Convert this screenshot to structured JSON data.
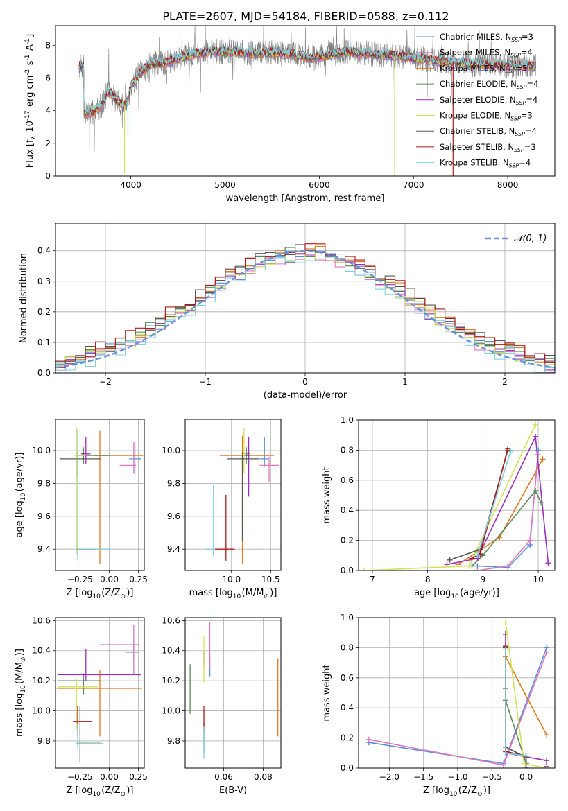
{
  "figure_title": "PLATE=2607, MJD=54184, FIBERID=0588, z=0.112",
  "colors": {
    "Chabrier MILES": "#5b8fd6",
    "Salpeter MILES": "#e377c2",
    "Kroupa MILES": "#e07b20",
    "Chabrier ELODIE": "#5a8a5a",
    "Salpeter ELODIE": "#9b30b8",
    "Kroupa ELODIE": "#d4e157",
    "Chabrier STELIB": "#555555",
    "Salpeter STELIB": "#b01818",
    "Kroupa STELIB": "#7fd3dc",
    "gaussian": "#6a8fd6",
    "spectrum": "#808080"
  },
  "chart_data": [
    {
      "id": "spectrum",
      "type": "line",
      "title": "PLATE=2607, MJD=54184, FIBERID=0588, z=0.112",
      "xlabel": "wavelength [Angstrom, rest frame]",
      "ylabel": "Flux [f$_\\lambda 10^{-17}$ erg cm$^{-2}$ s$^{-1}$ A$^{-1}$]",
      "xlim": [
        3200,
        8500
      ],
      "ylim": [
        0,
        9.2
      ],
      "xticks": [
        4000,
        5000,
        6000,
        7000,
        8000
      ],
      "yticks": [
        0,
        2,
        4,
        6,
        8
      ],
      "grid": false,
      "legend": "right",
      "legend_entries": [
        {
          "label": "Chabrier MILES, N",
          "sub": "SSP",
          "suffix": "=3"
        },
        {
          "label": "Salpeter MILES, N",
          "sub": "SSP",
          "suffix": "=4"
        },
        {
          "label": "Kroupa MILES, N",
          "sub": "SSP",
          "suffix": "=3"
        },
        {
          "label": "Chabrier ELODIE, N",
          "sub": "SSP",
          "suffix": "=4"
        },
        {
          "label": "Salpeter ELODIE, N",
          "sub": "SSP",
          "suffix": "=4"
        },
        {
          "label": "Kroupa ELODIE, N",
          "sub": "SSP",
          "suffix": "=3"
        },
        {
          "label": "Chabrier STELIB, N",
          "sub": "SSP",
          "suffix": "=4"
        },
        {
          "label": "Salpeter STELIB, N",
          "sub": "SSP",
          "suffix": "=3"
        },
        {
          "label": "Kroupa STELIB, N",
          "sub": "SSP",
          "suffix": "=4"
        }
      ],
      "model_continuum": {
        "x": [
          3500,
          3600,
          3700,
          3750,
          3800,
          3850,
          3900,
          3950,
          4000,
          4100,
          4200,
          4300,
          4400,
          4500,
          4700,
          4900,
          5100,
          5300,
          5500,
          5700,
          5900,
          6100,
          6300,
          6500,
          6700,
          7000,
          7200,
          7400,
          7600,
          7800,
          8000,
          8300
        ],
        "y": [
          3.8,
          3.9,
          4.4,
          5.2,
          5.0,
          4.6,
          4.4,
          4.3,
          5.5,
          6.3,
          6.8,
          6.9,
          7.0,
          7.2,
          7.5,
          7.6,
          7.6,
          7.5,
          7.55,
          7.5,
          7.2,
          7.4,
          7.6,
          7.5,
          7.4,
          7.2,
          7.1,
          6.95,
          6.85,
          6.8,
          6.75,
          6.7
        ]
      },
      "model_dips": [
        {
          "x": 3933,
          "y": 0.2,
          "color": "Kroupa ELODIE"
        },
        {
          "x": 3969,
          "y": 2.4,
          "color": "Kroupa STELIB"
        },
        {
          "x": 6800,
          "y": 0.0,
          "color": "Kroupa ELODIE"
        },
        {
          "x": 7420,
          "y": 0.0,
          "color": "Salpeter STELIB"
        }
      ]
    },
    {
      "id": "residuals",
      "type": "histogram",
      "xlabel": "(data-model)/error",
      "ylabel": "Normed distribution",
      "xlim": [
        -2.5,
        2.5
      ],
      "ylim": [
        0,
        0.49
      ],
      "xticks": [
        -2,
        -1,
        0,
        1,
        2
      ],
      "yticks": [
        0.0,
        0.1,
        0.2,
        0.3,
        0.4
      ],
      "grid": true,
      "legend": "upper right",
      "legend_label": "𝒩(0, 1)",
      "bin_edges_start": -2.5,
      "bin_width": 0.1,
      "series_order": [
        "Chabrier MILES",
        "Salpeter MILES",
        "Kroupa MILES",
        "Chabrier ELODIE",
        "Salpeter ELODIE",
        "Kroupa ELODIE",
        "Chabrier STELIB",
        "Salpeter STELIB",
        "Kroupa STELIB"
      ],
      "series_offsets": [
        0.0,
        -0.013,
        0.008,
        0.004,
        -0.008,
        -0.004,
        0.012,
        0.016,
        -0.017
      ]
    },
    {
      "id": "age-vs-Z",
      "type": "errorbar",
      "xlabel": "Z [log$_{10}$($Z/Z_\\odot$)]",
      "ylabel": "age  [log$_{10}$($age/yr$)]",
      "xlim": [
        -0.46,
        0.3
      ],
      "ylim": [
        9.27,
        10.19
      ],
      "xticks": [
        -0.25,
        0.0,
        0.25
      ],
      "yticks": [
        9.4,
        9.6,
        9.8,
        10.0
      ],
      "grid": true,
      "points": [
        {
          "s": "Chabrier MILES",
          "x": 0.22,
          "y": 9.95,
          "xerr": [
            0.05,
            0.05
          ],
          "yerr": [
            0.1,
            0.1
          ]
        },
        {
          "s": "Salpeter MILES",
          "x": 0.21,
          "y": 9.91,
          "xerr": [
            0.12,
            0.02
          ],
          "yerr": [
            0.05,
            0.14
          ]
        },
        {
          "s": "Kroupa MILES",
          "x": -0.08,
          "y": 9.97,
          "xerr": [
            0.05,
            0.37
          ],
          "yerr": [
            0.66,
            0.15
          ]
        },
        {
          "s": "Chabrier ELODIE",
          "x": -0.22,
          "y": 9.97,
          "xerr": [
            0.06,
            0.22
          ],
          "yerr": [
            0.05,
            0.05
          ]
        },
        {
          "s": "Salpeter ELODIE",
          "x": -0.2,
          "y": 9.98,
          "xerr": [
            0.04,
            0.04
          ],
          "yerr": [
            0.06,
            0.1
          ]
        },
        {
          "s": "Kroupa ELODIE",
          "x": -0.28,
          "y": 9.97,
          "xerr": [
            0.02,
            0.08
          ],
          "yerr": [
            0.6,
            0.17
          ]
        },
        {
          "s": "Chabrier STELIB",
          "x": -0.27,
          "y": 9.95,
          "xerr": [
            0.15,
            0.2
          ],
          "yerr": [
            0.1,
            0.05
          ]
        },
        {
          "s": "Salpeter STELIB",
          "x": -0.27,
          "y": 9.4,
          "xerr": [
            0.01,
            0.16
          ],
          "yerr": [
            0.01,
            0.01
          ]
        },
        {
          "s": "Kroupa STELIB",
          "x": -0.27,
          "y": 9.4,
          "xerr": [
            0.01,
            0.27
          ],
          "yerr": [
            0.07,
            0.73
          ]
        }
      ]
    },
    {
      "id": "age-vs-mass",
      "type": "errorbar",
      "xlabel": "mass [log$_{10}$($M/M_\\odot$)]",
      "ylabel": "",
      "xlim": [
        9.41,
        10.63
      ],
      "ylim": [
        9.27,
        10.19
      ],
      "xticks": [
        10.0,
        10.5
      ],
      "yticks": [
        9.4,
        9.6,
        9.8,
        10.0
      ],
      "grid": true,
      "points": [
        {
          "s": "Chabrier MILES",
          "x": 10.42,
          "y": 9.95,
          "xerr": [
            0.06,
            0.05
          ],
          "yerr": [
            0.05,
            0.13
          ]
        },
        {
          "s": "Salpeter MILES",
          "x": 10.48,
          "y": 9.91,
          "xerr": [
            0.12,
            0.13
          ],
          "yerr": [
            0.1,
            0.05
          ]
        },
        {
          "s": "Kroupa MILES",
          "x": 10.14,
          "y": 9.97,
          "xerr": [
            0.29,
            0.4
          ],
          "yerr": [
            0.66,
            0.12
          ]
        },
        {
          "s": "Chabrier ELODIE",
          "x": 10.19,
          "y": 9.97,
          "xerr": [
            0.03,
            0.04
          ],
          "yerr": [
            0.05,
            0.05
          ]
        },
        {
          "s": "Salpeter ELODIE",
          "x": 10.22,
          "y": 9.98,
          "xerr": [
            0.06,
            0.01
          ],
          "yerr": [
            0.26,
            0.1
          ]
        },
        {
          "s": "Kroupa ELODIE",
          "x": 10.16,
          "y": 9.98,
          "xerr": [
            0.01,
            0.03
          ],
          "yerr": [
            0.12,
            0.16
          ]
        },
        {
          "s": "Chabrier STELIB",
          "x": 10.14,
          "y": 9.95,
          "xerr": [
            0.2,
            0.21
          ],
          "yerr": [
            0.5,
            0.04
          ]
        },
        {
          "s": "Salpeter STELIB",
          "x": 9.93,
          "y": 9.4,
          "xerr": [
            0.14,
            0.11
          ],
          "yerr": [
            0.07,
            0.33
          ]
        },
        {
          "s": "Kroupa STELIB",
          "x": 9.77,
          "y": 9.4,
          "xerr": [
            0.1,
            0.01
          ],
          "yerr": [
            0.04,
            0.39
          ]
        }
      ]
    },
    {
      "id": "weight-vs-age",
      "type": "line",
      "xlabel": "age  [log$_{10}$($age/yr$)]",
      "ylabel": "mass weight",
      "xlim": [
        6.75,
        10.3
      ],
      "ylim": [
        0.0,
        1.0
      ],
      "xticks": [
        7,
        8,
        9,
        10
      ],
      "yticks": [
        0.0,
        0.2,
        0.4,
        0.6,
        0.8,
        1.0
      ],
      "grid": true,
      "series": [
        {
          "s": "Chabrier MILES",
          "x": [
            8.9,
            9.45,
            9.85,
            10.0
          ],
          "y": [
            0.03,
            0.02,
            0.17,
            0.8
          ]
        },
        {
          "s": "Salpeter MILES",
          "x": [
            8.9,
            9.45,
            9.85,
            10.0
          ],
          "y": [
            0.0,
            0.03,
            0.2,
            0.77
          ]
        },
        {
          "s": "Kroupa MILES",
          "x": [
            8.55,
            9.3,
            10.08
          ],
          "y": [
            0.04,
            0.22,
            0.74
          ]
        },
        {
          "s": "Chabrier ELODIE",
          "x": [
            8.8,
            9.0,
            9.95,
            10.05
          ],
          "y": [
            0.03,
            0.1,
            0.53,
            0.45
          ]
        },
        {
          "s": "Salpeter ELODIE",
          "x": [
            8.35,
            8.9,
            9.95,
            10.18
          ],
          "y": [
            0.04,
            0.08,
            0.89,
            0.05
          ]
        },
        {
          "s": "Kroupa ELODIE",
          "x": [
            6.85,
            8.75,
            9.95
          ],
          "y": [
            0.0,
            0.03,
            0.97
          ]
        },
        {
          "s": "Chabrier STELIB",
          "x": [
            8.4,
            8.95,
            9.45
          ],
          "y": [
            0.07,
            0.14,
            0.8
          ]
        },
        {
          "s": "Salpeter STELIB",
          "x": [
            8.8,
            8.95,
            9.45
          ],
          "y": [
            0.08,
            0.11,
            0.81
          ]
        },
        {
          "s": "Kroupa STELIB",
          "x": [
            8.9,
            9.5
          ],
          "y": [
            0.1,
            0.79
          ]
        }
      ]
    },
    {
      "id": "mass-vs-Z",
      "type": "errorbar",
      "xlabel": "Z [log$_{10}$($Z/Z_\\odot$)]",
      "ylabel": "mass [log$_{10}$($M/M_\\odot$)]",
      "xlim": [
        -0.46,
        0.3
      ],
      "ylim": [
        9.62,
        10.62
      ],
      "xticks": [
        -0.25,
        0.0,
        0.25
      ],
      "yticks": [
        9.8,
        10.0,
        10.2,
        10.4,
        10.6
      ],
      "grid": true,
      "points": [
        {
          "s": "Chabrier MILES",
          "x": 0.21,
          "y": 10.39,
          "xerr": [
            0.07,
            0.04
          ],
          "yerr": [
            0.05,
            0.1
          ]
        },
        {
          "s": "Salpeter MILES",
          "x": 0.21,
          "y": 10.44,
          "xerr": [
            0.29,
            0.05
          ],
          "yerr": [
            0.2,
            0.13
          ]
        },
        {
          "s": "Kroupa MILES",
          "x": -0.08,
          "y": 10.15,
          "xerr": [
            0.37,
            0.36
          ],
          "yerr": [
            0.32,
            0.12
          ]
        },
        {
          "s": "Chabrier ELODIE",
          "x": -0.22,
          "y": 10.2,
          "xerr": [
            0.22,
            0.15
          ],
          "yerr": [
            0.09,
            0.05
          ]
        },
        {
          "s": "Salpeter ELODIE",
          "x": -0.2,
          "y": 10.24,
          "xerr": [
            0.24,
            0.47
          ],
          "yerr": [
            0.04,
            0.17
          ]
        },
        {
          "s": "Kroupa ELODIE",
          "x": -0.28,
          "y": 10.16,
          "xerr": [
            0.16,
            0.18
          ],
          "yerr": [
            0.28,
            0.05
          ]
        },
        {
          "s": "Chabrier STELIB",
          "x": -0.25,
          "y": 9.78,
          "xerr": [
            0.04,
            0.2
          ],
          "yerr": [
            0.12,
            0.25
          ]
        },
        {
          "s": "Salpeter STELIB",
          "x": -0.27,
          "y": 9.93,
          "xerr": [
            0.04,
            0.12
          ],
          "yerr": [
            0.1,
            0.1
          ]
        },
        {
          "s": "Kroupa STELIB",
          "x": -0.27,
          "y": 9.79,
          "xerr": [
            0.01,
            0.2
          ],
          "yerr": [
            0.04,
            0.12
          ]
        }
      ]
    },
    {
      "id": "mass-vs-ebv",
      "type": "errorbar",
      "xlabel": "E(B-V)",
      "ylabel": "",
      "xlim": [
        0.0405,
        0.089
      ],
      "ylim": [
        9.62,
        10.62
      ],
      "xticks": [
        0.06,
        0.08
      ],
      "yticks": [
        9.8,
        10.0,
        10.2,
        10.4,
        10.6
      ],
      "grid": true,
      "points": [
        {
          "s": "Chabrier MILES",
          "x": 0.053,
          "y": 10.32,
          "xerr": [
            0.0,
            0.0
          ],
          "yerr": [
            0.09,
            0.06
          ]
        },
        {
          "s": "Salpeter MILES",
          "x": 0.053,
          "y": 10.44,
          "xerr": [
            0.0,
            0.0
          ],
          "yerr": [
            0.15,
            0.15
          ]
        },
        {
          "s": "Kroupa MILES",
          "x": 0.0875,
          "y": 10.1,
          "xerr": [
            0.0,
            0.0
          ],
          "yerr": [
            0.27,
            0.25
          ]
        },
        {
          "s": "Chabrier ELODIE",
          "x": 0.043,
          "y": 10.16,
          "xerr": [
            0.0,
            0.0
          ],
          "yerr": [
            0.18,
            0.15
          ]
        },
        {
          "s": "Salpeter ELODIE",
          "x": 0.05,
          "y": 10.3,
          "xerr": [
            0.0,
            0.0
          ],
          "yerr": [
            0.0,
            0.1
          ]
        },
        {
          "s": "Kroupa ELODIE",
          "x": 0.05,
          "y": 10.24,
          "xerr": [
            0.0,
            0.0
          ],
          "yerr": [
            0.05,
            0.26
          ]
        },
        {
          "s": "Chabrier STELIB",
          "x": 0.05,
          "y": 9.8,
          "xerr": [
            0.0,
            0.0
          ],
          "yerr": [
            0.08,
            0.12
          ]
        },
        {
          "s": "Salpeter STELIB",
          "x": 0.05,
          "y": 9.98,
          "xerr": [
            0.0,
            0.0
          ],
          "yerr": [
            0.12,
            0.05
          ]
        },
        {
          "s": "Kroupa STELIB",
          "x": 0.05,
          "y": 9.8,
          "xerr": [
            0.0,
            0.0
          ],
          "yerr": [
            0.12,
            0.1
          ]
        }
      ]
    },
    {
      "id": "weight-vs-Z",
      "type": "line",
      "xlabel": "Z [log$_{10}$($Z/Z_\\odot$)]",
      "ylabel": "mass weight",
      "xlim": [
        -2.45,
        0.42
      ],
      "ylim": [
        0.0,
        1.0
      ],
      "xticks": [
        -2.0,
        -1.5,
        -1.0,
        -0.5,
        0.0
      ],
      "yticks": [
        0.0,
        0.2,
        0.4,
        0.6,
        0.8,
        1.0
      ],
      "grid": true,
      "series": [
        {
          "s": "Chabrier MILES",
          "x": [
            -2.3,
            -0.33,
            0.3
          ],
          "y": [
            0.17,
            0.03,
            0.8
          ]
        },
        {
          "s": "Salpeter MILES",
          "x": [
            -2.3,
            -0.33,
            0.3
          ],
          "y": [
            0.19,
            0.02,
            0.77
          ]
        },
        {
          "s": "Kroupa MILES",
          "x": [
            -0.3,
            0.3
          ],
          "y": [
            0.74,
            0.22
          ]
        },
        {
          "s": "Chabrier ELODIE",
          "x": [
            -0.3,
            -0.3,
            0.0
          ],
          "y": [
            0.53,
            0.45,
            0.03
          ]
        },
        {
          "s": "Salpeter ELODIE",
          "x": [
            -0.3,
            -0.3,
            0.3,
            0.3
          ],
          "y": [
            0.89,
            0.1,
            0.05,
            0.01
          ]
        },
        {
          "s": "Kroupa ELODIE",
          "x": [
            -0.3,
            -0.03,
            0.3
          ],
          "y": [
            0.97,
            0.03,
            0.0
          ]
        },
        {
          "s": "Chabrier STELIB",
          "x": [
            -0.3,
            -0.3,
            0.0,
            0.0
          ],
          "y": [
            0.8,
            0.14,
            0.07,
            0.0
          ]
        },
        {
          "s": "Salpeter STELIB",
          "x": [
            -0.3,
            -0.3,
            0.0
          ],
          "y": [
            0.81,
            0.11,
            0.08
          ]
        },
        {
          "s": "Kroupa STELIB",
          "x": [
            -0.3,
            -0.3,
            0.0
          ],
          "y": [
            0.79,
            0.1,
            0.08
          ]
        }
      ]
    }
  ]
}
